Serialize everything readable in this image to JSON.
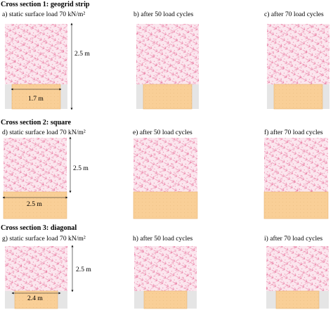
{
  "sections": [
    {
      "heading": "Cross section 1: geogrid strip",
      "panels": [
        {
          "caption": "a) static surface load 70 kN/m²",
          "height_label": "2.5 m",
          "width_label": "1.7 m"
        },
        {
          "caption": "b) after 50 load cycles"
        },
        {
          "caption": "c) after 70 load cycles"
        }
      ]
    },
    {
      "heading": "Cross section 2: square",
      "panels": [
        {
          "caption": "d) static surface load 70 kN/m²",
          "height_label": "2.5 m",
          "width_label": "2.5 m"
        },
        {
          "caption": "e) after 50 load cycles"
        },
        {
          "caption": "f) after 70 load cycles"
        }
      ]
    },
    {
      "heading": "Cross section 3: diagonal",
      "panels": [
        {
          "caption": "g) static surface load 70 kN/m²",
          "height_label": "2.5 m",
          "width_label": "2.4 m"
        },
        {
          "caption": "h) after 50 load cycles"
        },
        {
          "caption": "i) after 70 load cycles"
        }
      ]
    }
  ],
  "colors": {
    "soil_fill": "#fbe6ee",
    "vector": "#e0447a",
    "strip_fill": "#f9cf97",
    "strip_stroke": "#e7b574",
    "base_gray": "#e5e5e5",
    "text": "#111111"
  }
}
